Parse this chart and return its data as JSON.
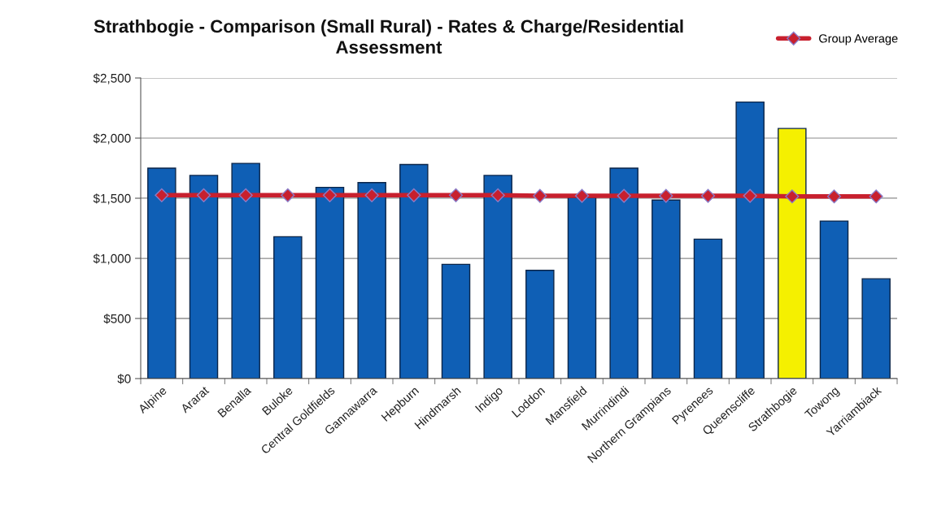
{
  "chart_data": {
    "type": "bar",
    "title": "Strathbogie - Comparison (Small Rural) - Rates & Charge/Residential Assessment",
    "categories": [
      "Alpine",
      "Ararat",
      "Benalla",
      "Buloke",
      "Central Goldfields",
      "Gannawarra",
      "Hepburn",
      "Hindmarsh",
      "Indigo",
      "Loddon",
      "Mansfield",
      "Murrindindi",
      "Northern Grampians",
      "Pyrenees",
      "Queenscliffe",
      "Strathbogie",
      "Towong",
      "Yarriambiack"
    ],
    "series": [
      {
        "colors": [
          "#0f5fb5",
          "#0f5fb5",
          "#0f5fb5",
          "#0f5fb5",
          "#0f5fb5",
          "#0f5fb5",
          "#0f5fb5",
          "#0f5fb5",
          "#0f5fb5",
          "#0f5fb5",
          "#0f5fb5",
          "#0f5fb5",
          "#0f5fb5",
          "#0f5fb5",
          "#0f5fb5",
          "#f5f000",
          "#0f5fb5",
          "#0f5fb5"
        ],
        "values": [
          1750,
          1690,
          1790,
          1180,
          1590,
          1630,
          1780,
          950,
          1690,
          900,
          1505,
          1750,
          1485,
          1160,
          2300,
          2080,
          1310,
          830
        ]
      },
      {
        "type": "line",
        "name": "Group Average",
        "color": "#c8202e",
        "marker": "diamond",
        "values": [
          1525,
          1525,
          1525,
          1525,
          1525,
          1525,
          1525,
          1525,
          1525,
          1520,
          1520,
          1520,
          1520,
          1520,
          1520,
          1515,
          1515,
          1515
        ]
      }
    ],
    "ylim": [
      0,
      2500
    ],
    "yticks": [
      {
        "value": 0,
        "label": "$0"
      },
      {
        "value": 500,
        "label": "$500"
      },
      {
        "value": 1000,
        "label": "$1,000"
      },
      {
        "value": 1500,
        "label": "$1,500"
      },
      {
        "value": 2000,
        "label": "$2,000"
      },
      {
        "value": 2500,
        "label": "$2,500"
      }
    ],
    "grid": "y",
    "legend": "top right"
  }
}
